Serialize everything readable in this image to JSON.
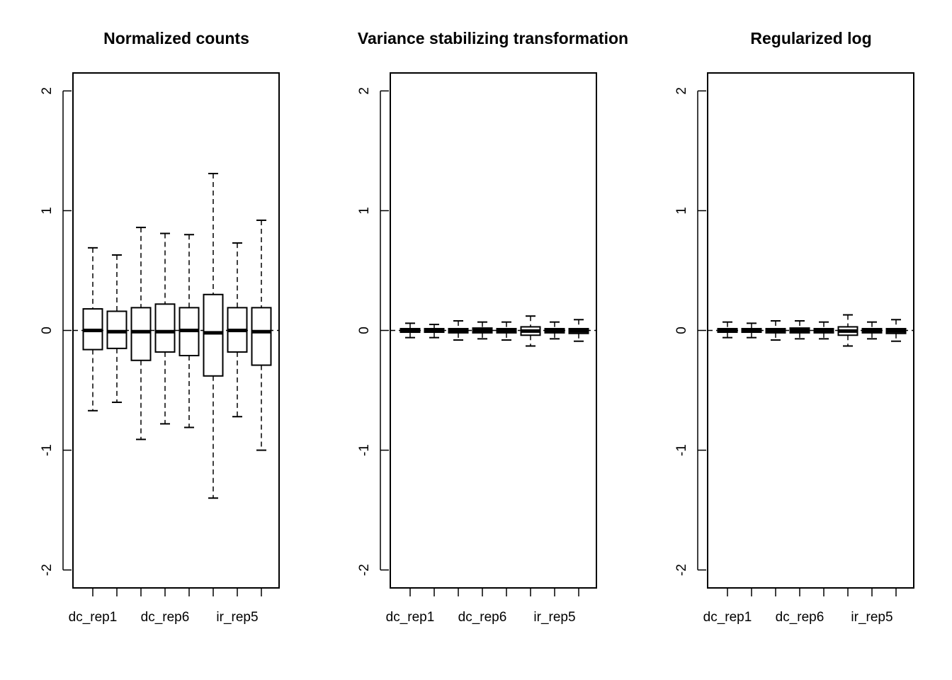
{
  "chart_data": [
    {
      "type": "boxplot",
      "title": "Normalized counts",
      "xlabel": "",
      "ylabel": "",
      "ylim": [
        -2.15,
        2.15
      ],
      "yticks": [
        -2,
        -1,
        0,
        1,
        2
      ],
      "ytick_labels": [
        "-2",
        "-1",
        "0",
        "1",
        "2"
      ],
      "reference_line": 0,
      "n_boxes": 8,
      "xtick_labels": [
        {
          "label": "dc_rep1",
          "box_index": 1
        },
        {
          "label": "dc_rep6",
          "box_index": 4
        },
        {
          "label": "ir_rep5",
          "box_index": 7
        }
      ],
      "boxes": [
        {
          "whisker_low": -0.67,
          "q1": -0.16,
          "median": 0.0,
          "q3": 0.18,
          "whisker_high": 0.69
        },
        {
          "whisker_low": -0.6,
          "q1": -0.15,
          "median": -0.01,
          "q3": 0.16,
          "whisker_high": 0.63
        },
        {
          "whisker_low": -0.91,
          "q1": -0.25,
          "median": -0.01,
          "q3": 0.19,
          "whisker_high": 0.86
        },
        {
          "whisker_low": -0.78,
          "q1": -0.18,
          "median": -0.01,
          "q3": 0.22,
          "whisker_high": 0.81
        },
        {
          "whisker_low": -0.81,
          "q1": -0.21,
          "median": 0.0,
          "q3": 0.19,
          "whisker_high": 0.8
        },
        {
          "whisker_low": -1.4,
          "q1": -0.38,
          "median": -0.02,
          "q3": 0.3,
          "whisker_high": 1.31
        },
        {
          "whisker_low": -0.72,
          "q1": -0.18,
          "median": 0.0,
          "q3": 0.19,
          "whisker_high": 0.73
        },
        {
          "whisker_low": -1.0,
          "q1": -0.29,
          "median": -0.01,
          "q3": 0.19,
          "whisker_high": 0.92
        }
      ]
    },
    {
      "type": "boxplot",
      "title": "Variance stabilizing transformation",
      "xlabel": "",
      "ylabel": "",
      "ylim": [
        -2.15,
        2.15
      ],
      "yticks": [
        -2,
        -1,
        0,
        1,
        2
      ],
      "ytick_labels": [
        "-2",
        "-1",
        "0",
        "1",
        "2"
      ],
      "reference_line": 0,
      "n_boxes": 8,
      "xtick_labels": [
        {
          "label": "dc_rep1",
          "box_index": 1
        },
        {
          "label": "dc_rep6",
          "box_index": 4
        },
        {
          "label": "ir_rep5",
          "box_index": 7
        }
      ],
      "boxes": [
        {
          "whisker_low": -0.06,
          "q1": -0.015,
          "median": 0.0,
          "q3": 0.015,
          "whisker_high": 0.06
        },
        {
          "whisker_low": -0.06,
          "q1": -0.015,
          "median": 0.0,
          "q3": 0.015,
          "whisker_high": 0.05
        },
        {
          "whisker_low": -0.08,
          "q1": -0.02,
          "median": -0.005,
          "q3": 0.015,
          "whisker_high": 0.08
        },
        {
          "whisker_low": -0.07,
          "q1": -0.02,
          "median": 0.0,
          "q3": 0.02,
          "whisker_high": 0.07
        },
        {
          "whisker_low": -0.08,
          "q1": -0.02,
          "median": 0.0,
          "q3": 0.015,
          "whisker_high": 0.07
        },
        {
          "whisker_low": -0.13,
          "q1": -0.04,
          "median": -0.005,
          "q3": 0.03,
          "whisker_high": 0.12
        },
        {
          "whisker_low": -0.07,
          "q1": -0.02,
          "median": 0.0,
          "q3": 0.015,
          "whisker_high": 0.07
        },
        {
          "whisker_low": -0.09,
          "q1": -0.025,
          "median": -0.005,
          "q3": 0.015,
          "whisker_high": 0.09
        }
      ]
    },
    {
      "type": "boxplot",
      "title": "Regularized log",
      "xlabel": "",
      "ylabel": "",
      "ylim": [
        -2.15,
        2.15
      ],
      "yticks": [
        -2,
        -1,
        0,
        1,
        2
      ],
      "ytick_labels": [
        "-2",
        "-1",
        "0",
        "1",
        "2"
      ],
      "reference_line": 0,
      "n_boxes": 8,
      "xtick_labels": [
        {
          "label": "dc_rep1",
          "box_index": 1
        },
        {
          "label": "dc_rep6",
          "box_index": 4
        },
        {
          "label": "ir_rep5",
          "box_index": 7
        }
      ],
      "boxes": [
        {
          "whisker_low": -0.06,
          "q1": -0.015,
          "median": 0.0,
          "q3": 0.015,
          "whisker_high": 0.07
        },
        {
          "whisker_low": -0.06,
          "q1": -0.015,
          "median": 0.0,
          "q3": 0.015,
          "whisker_high": 0.06
        },
        {
          "whisker_low": -0.08,
          "q1": -0.02,
          "median": -0.005,
          "q3": 0.015,
          "whisker_high": 0.08
        },
        {
          "whisker_low": -0.07,
          "q1": -0.02,
          "median": 0.0,
          "q3": 0.02,
          "whisker_high": 0.08
        },
        {
          "whisker_low": -0.07,
          "q1": -0.02,
          "median": 0.0,
          "q3": 0.015,
          "whisker_high": 0.07
        },
        {
          "whisker_low": -0.13,
          "q1": -0.04,
          "median": -0.005,
          "q3": 0.03,
          "whisker_high": 0.13
        },
        {
          "whisker_low": -0.07,
          "q1": -0.02,
          "median": 0.0,
          "q3": 0.015,
          "whisker_high": 0.07
        },
        {
          "whisker_low": -0.09,
          "q1": -0.025,
          "median": -0.005,
          "q3": 0.015,
          "whisker_high": 0.09
        }
      ]
    }
  ]
}
